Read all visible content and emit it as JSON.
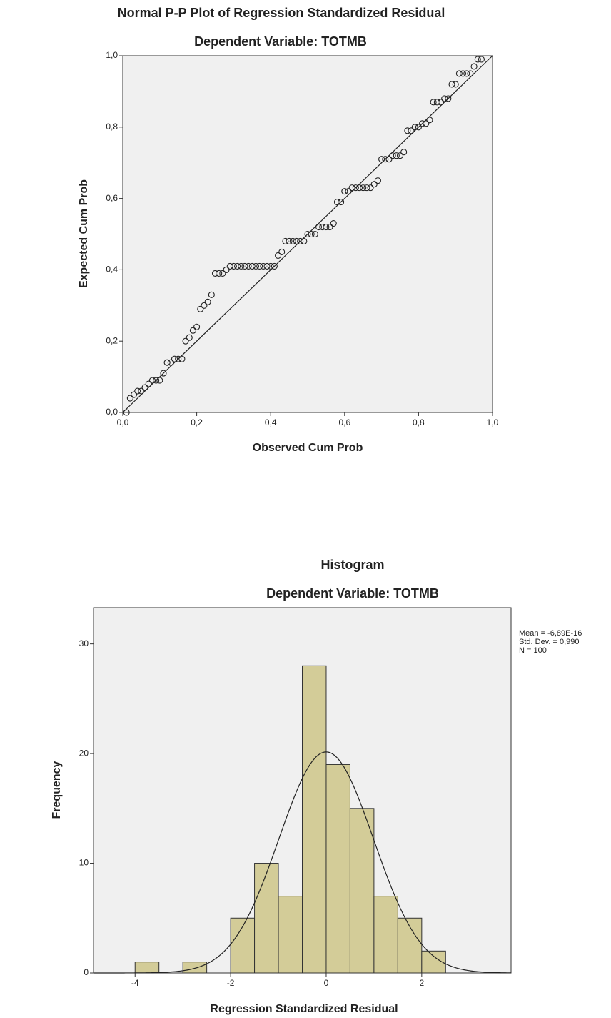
{
  "chart_data": [
    {
      "type": "scatter",
      "title": "Normal P-P Plot of Regression Standardized Residual",
      "subtitle": "Dependent Variable: TOTMB",
      "x_label": "Observed Cum Prob",
      "y_label": "Expected Cum Prob",
      "x": [
        0.01,
        0.02,
        0.03,
        0.04,
        0.05,
        0.06,
        0.07,
        0.08,
        0.09,
        0.1,
        0.11,
        0.12,
        0.13,
        0.14,
        0.15,
        0.16,
        0.17,
        0.18,
        0.19,
        0.2,
        0.21,
        0.22,
        0.23,
        0.24,
        0.25,
        0.26,
        0.27,
        0.28,
        0.29,
        0.3,
        0.31,
        0.32,
        0.33,
        0.34,
        0.35,
        0.36,
        0.37,
        0.38,
        0.39,
        0.4,
        0.41,
        0.42,
        0.43,
        0.44,
        0.45,
        0.46,
        0.47,
        0.48,
        0.49,
        0.5,
        0.51,
        0.52,
        0.53,
        0.54,
        0.55,
        0.56,
        0.57,
        0.58,
        0.59,
        0.6,
        0.61,
        0.62,
        0.63,
        0.64,
        0.65,
        0.66,
        0.67,
        0.68,
        0.69,
        0.7,
        0.71,
        0.72,
        0.73,
        0.74,
        0.75,
        0.76,
        0.77,
        0.78,
        0.79,
        0.8,
        0.81,
        0.82,
        0.83,
        0.84,
        0.85,
        0.86,
        0.87,
        0.88,
        0.89,
        0.9,
        0.91,
        0.92,
        0.93,
        0.94,
        0.95,
        0.96,
        0.97
      ],
      "y": [
        0.0,
        0.04,
        0.05,
        0.06,
        0.06,
        0.07,
        0.08,
        0.09,
        0.09,
        0.09,
        0.11,
        0.14,
        0.14,
        0.15,
        0.15,
        0.15,
        0.2,
        0.21,
        0.23,
        0.24,
        0.29,
        0.3,
        0.31,
        0.33,
        0.39,
        0.39,
        0.39,
        0.4,
        0.41,
        0.41,
        0.41,
        0.41,
        0.41,
        0.41,
        0.41,
        0.41,
        0.41,
        0.41,
        0.41,
        0.41,
        0.41,
        0.44,
        0.45,
        0.48,
        0.48,
        0.48,
        0.48,
        0.48,
        0.48,
        0.5,
        0.5,
        0.5,
        0.52,
        0.52,
        0.52,
        0.52,
        0.53,
        0.59,
        0.59,
        0.62,
        0.62,
        0.63,
        0.63,
        0.63,
        0.63,
        0.63,
        0.63,
        0.64,
        0.65,
        0.71,
        0.71,
        0.71,
        0.72,
        0.72,
        0.72,
        0.73,
        0.79,
        0.79,
        0.8,
        0.8,
        0.81,
        0.81,
        0.82,
        0.87,
        0.87,
        0.87,
        0.88,
        0.88,
        0.92,
        0.92,
        0.95,
        0.95,
        0.95,
        0.95,
        0.97,
        0.99,
        0.99
      ],
      "xlim": [
        0,
        1
      ],
      "ylim": [
        0,
        1
      ],
      "xticks": [
        {
          "value": 0,
          "label": "0,0"
        },
        {
          "value": 0.2,
          "label": "0,2"
        },
        {
          "value": 0.4,
          "label": "0,4"
        },
        {
          "value": 0.6,
          "label": "0,6"
        },
        {
          "value": 0.8,
          "label": "0,8"
        },
        {
          "value": 1,
          "label": "1,0"
        }
      ],
      "yticks": [
        {
          "value": 0,
          "label": "0,0"
        },
        {
          "value": 0.2,
          "label": "0,2"
        },
        {
          "value": 0.4,
          "label": "0,4"
        },
        {
          "value": 0.6,
          "label": "0,6"
        },
        {
          "value": 0.8,
          "label": "0,8"
        },
        {
          "value": 1,
          "label": "1,0"
        }
      ],
      "reference_line": true,
      "color": "#222222"
    },
    {
      "type": "histogram",
      "title": "Histogram",
      "subtitle": "Dependent Variable: TOTMB",
      "x_label": "Regression Standardized Residual",
      "y_label": "Frequency",
      "bins": [
        -4,
        -3.5,
        -3,
        -2.5,
        -2,
        -1.5,
        -1,
        -0.5,
        0,
        0.5,
        1,
        1.5,
        2,
        2.5
      ],
      "values": [
        1,
        0,
        1,
        0,
        5,
        10,
        7,
        28,
        19,
        15,
        7,
        5,
        2
      ],
      "xlim": [
        -4.87,
        3.87
      ],
      "ylim": [
        0,
        33.3
      ],
      "xticks": [
        -4,
        -2,
        0,
        2
      ],
      "yticks": [
        0,
        10,
        20,
        30
      ],
      "stats": [
        {
          "value": -6.89e-16,
          "label": "Mean = -6,89E-16"
        },
        {
          "value": 0.99,
          "label": "Std. Dev. = 0,990"
        },
        {
          "value": 100,
          "label": "N = 100"
        }
      ],
      "normal_curve": true,
      "color": "#d3cc98"
    }
  ]
}
